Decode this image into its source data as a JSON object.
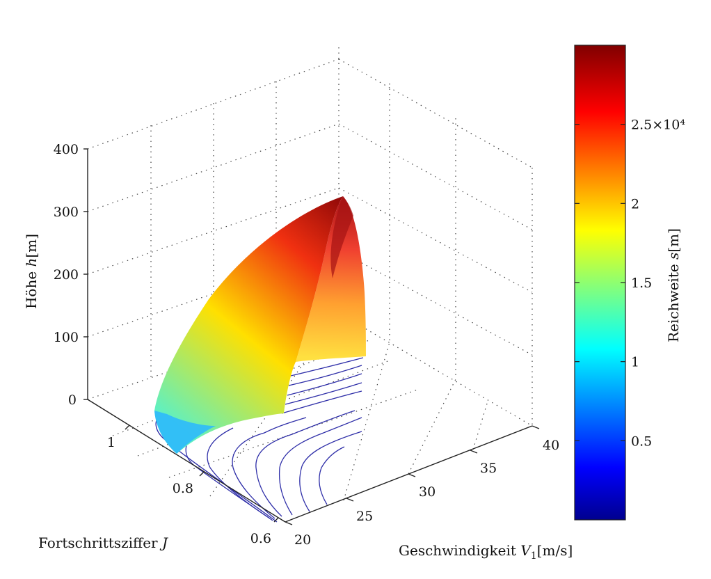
{
  "chart_data": {
    "type": "surface3d",
    "axes": {
      "x": {
        "label_prefix": "Geschwindigkeit ",
        "label_var": "V",
        "label_sub": "1",
        "label_unit": "[m/s]",
        "range": [
          20,
          40
        ],
        "ticks": [
          "20",
          "25",
          "30",
          "35",
          "40"
        ]
      },
      "y": {
        "label_prefix": "Fortschrittsziffer ",
        "label_var": "J",
        "range": [
          0.6,
          1.1
        ],
        "ticks": [
          "0.6",
          "0.8",
          "1"
        ]
      },
      "z": {
        "label_prefix": "Höhe ",
        "label_var": "h",
        "label_unit": "[m]",
        "range": [
          0,
          400
        ],
        "ticks": [
          "0",
          "100",
          "200",
          "300",
          "400"
        ]
      }
    },
    "colorbar": {
      "label_prefix": "Reichweite ",
      "label_var": "s",
      "label_unit": "[m]",
      "range": [
        0,
        30000
      ],
      "tick_values": [
        5000,
        10000,
        15000,
        20000,
        25000
      ],
      "tick_labels": [
        "0.5",
        "1",
        "1.5",
        "2",
        "2.5×10⁴"
      ],
      "colormap": "jet"
    },
    "surface": {
      "description": "range s as function of V1 and J, plotted over height h",
      "corner_points": [
        {
          "V1": 20,
          "J": 1.05,
          "h": 0,
          "s": 9000
        },
        {
          "V1": 20,
          "J": 1.05,
          "h": 320,
          "s": 29000
        },
        {
          "V1": 30,
          "J": 1.05,
          "h": 300,
          "s": 27000
        },
        {
          "V1": 30,
          "J": 0.85,
          "h": 0,
          "s": 16000
        }
      ]
    },
    "contours": {
      "plane": "h = 0",
      "count": 13
    },
    "grid": true
  }
}
